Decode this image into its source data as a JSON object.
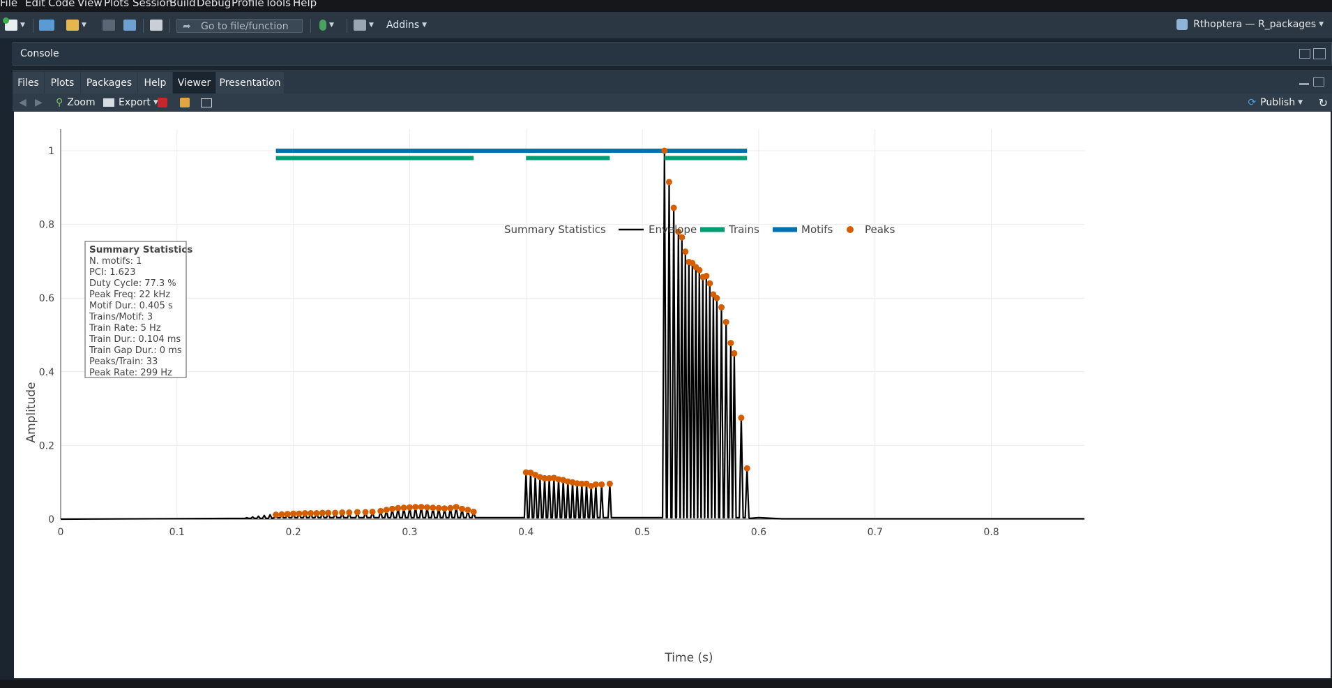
{
  "menu": [
    "File",
    "Edit",
    "Code",
    "View",
    "Plots",
    "Session",
    "Build",
    "Debug",
    "Profile",
    "Tools",
    "Help"
  ],
  "toolbar": {
    "goto_placeholder": "Go to file/function",
    "addins_label": "Addins",
    "project_label": "Rthoptera — R_packages"
  },
  "console": {
    "title": "Console"
  },
  "tabs": [
    "Files",
    "Plots",
    "Packages",
    "Help",
    "Viewer",
    "Presentation"
  ],
  "active_tab": "Viewer",
  "viewer_toolbar": {
    "zoom_label": "Zoom",
    "export_label": "Export",
    "publish_label": "Publish"
  },
  "colors": {
    "envelope": "#000000",
    "trains": "#009E73",
    "motifs": "#0072B2",
    "peaks": "#D55E00"
  },
  "summary": {
    "title": "Summary Statistics",
    "lines": [
      "N. motifs: 1",
      "PCI:  1.623",
      "Duty Cycle:  77.3 %",
      "Peak Freq:  22 kHz",
      "Motif Dur.:  0.405 s",
      "Trains/Motif:  3",
      "Train Rate:  5 Hz",
      "Train Dur.:  0.104 ms",
      "Train Gap Dur.:  0 ms",
      "Peaks/Train:  33",
      "Peak Rate:  299 Hz"
    ]
  },
  "chart_data": {
    "type": "line",
    "xlabel": "Time (s)",
    "ylabel": "Amplitude",
    "xlim": [
      0,
      0.88
    ],
    "ylim": [
      0,
      1.05
    ],
    "xticks": [
      0,
      0.1,
      0.2,
      0.3,
      0.4,
      0.5,
      0.6,
      0.7,
      0.8
    ],
    "xtick_labels": [
      "0",
      "0.1",
      "0.2",
      "0.3",
      "0.4",
      "0.5",
      "0.6",
      "0.7",
      "0.8"
    ],
    "yticks": [
      0,
      0.2,
      0.4,
      0.6,
      0.8,
      1
    ],
    "ytick_labels": [
      "0",
      "0.2",
      "0.4",
      "0.6",
      "0.8",
      "1"
    ],
    "grid": true,
    "legend": {
      "position": "top-center",
      "title": "Summary Statistics",
      "entries": [
        "Envelope",
        "Trains",
        "Motifs",
        "Peaks"
      ]
    },
    "motifs": [
      {
        "start": 0.185,
        "end": 0.59,
        "y": 1.0
      }
    ],
    "trains": [
      {
        "start": 0.185,
        "end": 0.355,
        "y": 0.98
      },
      {
        "start": 0.4,
        "end": 0.472,
        "y": 0.98
      },
      {
        "start": 0.519,
        "end": 0.59,
        "y": 0.98
      }
    ],
    "peaks": [
      [
        0.185,
        0.012
      ],
      [
        0.19,
        0.013
      ],
      [
        0.195,
        0.014
      ],
      [
        0.2,
        0.015
      ],
      [
        0.205,
        0.015
      ],
      [
        0.21,
        0.016
      ],
      [
        0.215,
        0.016
      ],
      [
        0.22,
        0.016
      ],
      [
        0.225,
        0.017
      ],
      [
        0.23,
        0.017
      ],
      [
        0.236,
        0.017
      ],
      [
        0.242,
        0.018
      ],
      [
        0.248,
        0.018
      ],
      [
        0.255,
        0.019
      ],
      [
        0.262,
        0.019
      ],
      [
        0.268,
        0.02
      ],
      [
        0.275,
        0.022
      ],
      [
        0.28,
        0.025
      ],
      [
        0.285,
        0.028
      ],
      [
        0.29,
        0.03
      ],
      [
        0.295,
        0.031
      ],
      [
        0.3,
        0.032
      ],
      [
        0.305,
        0.033
      ],
      [
        0.31,
        0.033
      ],
      [
        0.315,
        0.032
      ],
      [
        0.32,
        0.031
      ],
      [
        0.325,
        0.03
      ],
      [
        0.33,
        0.029
      ],
      [
        0.335,
        0.03
      ],
      [
        0.34,
        0.033
      ],
      [
        0.345,
        0.028
      ],
      [
        0.35,
        0.025
      ],
      [
        0.355,
        0.02
      ],
      [
        0.4,
        0.127
      ],
      [
        0.404,
        0.126
      ],
      [
        0.408,
        0.12
      ],
      [
        0.412,
        0.114
      ],
      [
        0.416,
        0.111
      ],
      [
        0.42,
        0.111
      ],
      [
        0.424,
        0.112
      ],
      [
        0.428,
        0.108
      ],
      [
        0.432,
        0.106
      ],
      [
        0.436,
        0.102
      ],
      [
        0.44,
        0.1
      ],
      [
        0.444,
        0.097
      ],
      [
        0.448,
        0.096
      ],
      [
        0.452,
        0.096
      ],
      [
        0.456,
        0.09
      ],
      [
        0.46,
        0.094
      ],
      [
        0.465,
        0.094
      ],
      [
        0.472,
        0.096
      ],
      [
        0.519,
        1.0
      ],
      [
        0.523,
        0.915
      ],
      [
        0.527,
        0.845
      ],
      [
        0.531,
        0.78
      ],
      [
        0.534,
        0.765
      ],
      [
        0.537,
        0.726
      ],
      [
        0.54,
        0.698
      ],
      [
        0.543,
        0.695
      ],
      [
        0.546,
        0.684
      ],
      [
        0.549,
        0.676
      ],
      [
        0.552,
        0.657
      ],
      [
        0.555,
        0.66
      ],
      [
        0.558,
        0.64
      ],
      [
        0.561,
        0.61
      ],
      [
        0.564,
        0.6
      ],
      [
        0.568,
        0.575
      ],
      [
        0.572,
        0.535
      ],
      [
        0.576,
        0.478
      ],
      [
        0.579,
        0.45
      ],
      [
        0.585,
        0.275
      ],
      [
        0.59,
        0.138
      ]
    ]
  }
}
